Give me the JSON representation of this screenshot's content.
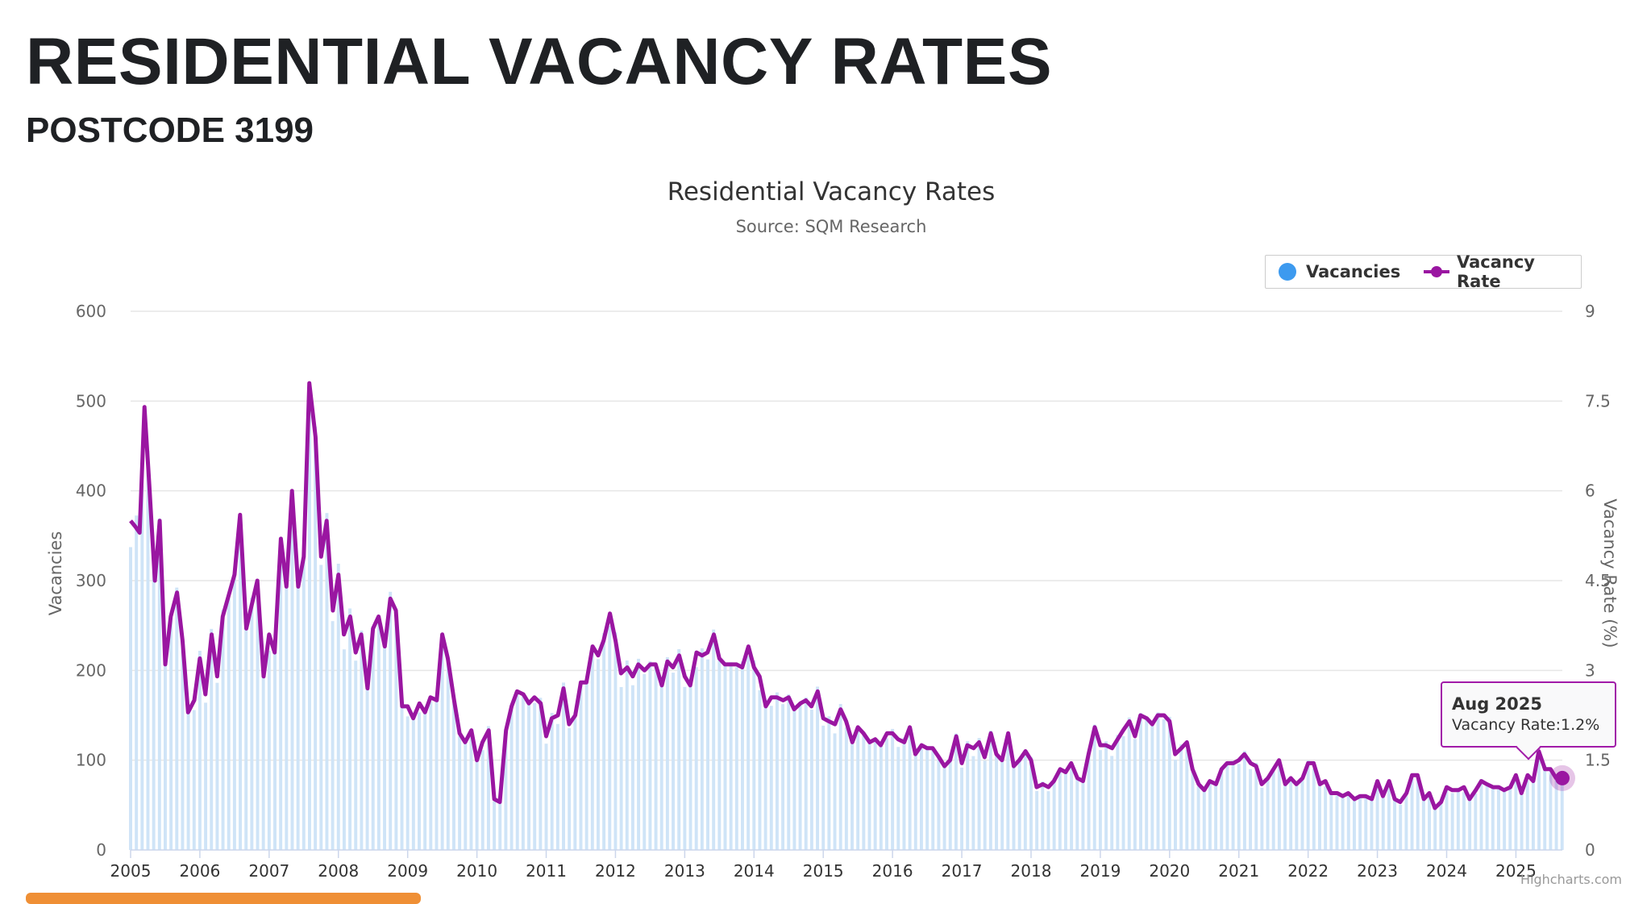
{
  "page": {
    "title": "RESIDENTIAL VACANCY RATES",
    "subtitle": "POSTCODE 3199"
  },
  "credits": "Highcharts.com",
  "tooltip": {
    "date": "Aug 2025",
    "label": "Vacancy Rate:",
    "value": "1.2%"
  },
  "colors": {
    "vacancies": "#3d9aef",
    "vacancies_bar": "#cfe4f7",
    "vacancy_rate": "#9a16a1",
    "grid": "#e6e6e6",
    "text": "#333333",
    "axis_text": "#666666",
    "accent_bar": "#ef8f35"
  },
  "chart_data": {
    "type": "bar+line",
    "title": "Residential Vacancy Rates",
    "subtitle": "Source: SQM Research",
    "xlabel": "",
    "ylabel": "Vacancies",
    "ylabel_right": "Vacancy Rate (%)",
    "xlim": [
      2005,
      2025.67
    ],
    "ylim": [
      0,
      600
    ],
    "ylim_right": [
      0,
      9
    ],
    "x_ticks": [
      "2005",
      "2006",
      "2007",
      "2008",
      "2009",
      "2010",
      "2011",
      "2012",
      "2013",
      "2014",
      "2015",
      "2016",
      "2017",
      "2018",
      "2019",
      "2020",
      "2021",
      "2022",
      "2023",
      "2024",
      "2025"
    ],
    "y_ticks": [
      "0",
      "100",
      "200",
      "300",
      "400",
      "500",
      "600"
    ],
    "y_ticks_right": [
      "0",
      "1.5",
      "3",
      "4.5",
      "6",
      "7.5",
      "9"
    ],
    "legend": [
      "Vacancies",
      "Vacancy Rate"
    ],
    "legend_position": "top-right",
    "vacancy_rate_keypoints": [
      [
        2005.0,
        5.5
      ],
      [
        2005.07,
        5.4
      ],
      [
        2005.13,
        5.3
      ],
      [
        2005.2,
        7.4
      ],
      [
        2005.27,
        6.1
      ],
      [
        2005.35,
        4.5
      ],
      [
        2005.42,
        5.5
      ],
      [
        2005.5,
        3.1
      ],
      [
        2005.58,
        3.9
      ],
      [
        2005.67,
        4.3
      ],
      [
        2005.75,
        3.5
      ],
      [
        2005.83,
        2.3
      ],
      [
        2005.92,
        2.5
      ],
      [
        2006.0,
        3.2
      ],
      [
        2006.08,
        2.6
      ],
      [
        2006.17,
        3.6
      ],
      [
        2006.25,
        2.9
      ],
      [
        2006.33,
        3.9
      ],
      [
        2006.5,
        4.6
      ],
      [
        2006.58,
        5.6
      ],
      [
        2006.67,
        3.7
      ],
      [
        2006.83,
        4.5
      ],
      [
        2006.92,
        2.9
      ],
      [
        2007.0,
        3.6
      ],
      [
        2007.08,
        3.3
      ],
      [
        2007.17,
        5.2
      ],
      [
        2007.25,
        4.4
      ],
      [
        2007.33,
        6.0
      ],
      [
        2007.42,
        4.4
      ],
      [
        2007.5,
        4.9
      ],
      [
        2007.58,
        7.8
      ],
      [
        2007.67,
        6.9
      ],
      [
        2007.75,
        4.9
      ],
      [
        2007.83,
        5.5
      ],
      [
        2007.92,
        4.0
      ],
      [
        2008.0,
        4.6
      ],
      [
        2008.08,
        3.6
      ],
      [
        2008.17,
        3.9
      ],
      [
        2008.25,
        3.3
      ],
      [
        2008.33,
        3.6
      ],
      [
        2008.42,
        2.7
      ],
      [
        2008.5,
        3.7
      ],
      [
        2008.58,
        3.9
      ],
      [
        2008.67,
        3.4
      ],
      [
        2008.75,
        4.2
      ],
      [
        2008.83,
        4.0
      ],
      [
        2008.92,
        2.4
      ],
      [
        2009.0,
        2.4
      ],
      [
        2009.08,
        2.2
      ],
      [
        2009.17,
        2.45
      ],
      [
        2009.25,
        2.3
      ],
      [
        2009.33,
        2.55
      ],
      [
        2009.42,
        2.5
      ],
      [
        2009.5,
        3.6
      ],
      [
        2009.58,
        3.2
      ],
      [
        2009.67,
        2.5
      ],
      [
        2009.75,
        1.95
      ],
      [
        2009.83,
        1.8
      ],
      [
        2009.92,
        2.0
      ],
      [
        2010.0,
        1.5
      ],
      [
        2010.08,
        1.8
      ],
      [
        2010.17,
        2.0
      ],
      [
        2010.25,
        0.85
      ],
      [
        2010.33,
        0.8
      ],
      [
        2010.42,
        2.0
      ],
      [
        2010.5,
        2.4
      ],
      [
        2010.58,
        2.65
      ],
      [
        2010.67,
        2.6
      ],
      [
        2010.75,
        2.45
      ],
      [
        2010.83,
        2.55
      ],
      [
        2010.92,
        2.45
      ],
      [
        2011.0,
        1.9
      ],
      [
        2011.08,
        2.2
      ],
      [
        2011.17,
        2.25
      ],
      [
        2011.25,
        2.7
      ],
      [
        2011.33,
        2.1
      ],
      [
        2011.42,
        2.25
      ],
      [
        2011.5,
        2.8
      ],
      [
        2011.58,
        2.8
      ],
      [
        2011.67,
        3.4
      ],
      [
        2011.75,
        3.25
      ],
      [
        2011.83,
        3.5
      ],
      [
        2011.92,
        3.95
      ],
      [
        2012.0,
        3.5
      ],
      [
        2012.08,
        2.95
      ],
      [
        2012.17,
        3.05
      ],
      [
        2012.25,
        2.9
      ],
      [
        2012.33,
        3.1
      ],
      [
        2012.42,
        3.0
      ],
      [
        2012.5,
        3.1
      ],
      [
        2012.58,
        3.1
      ],
      [
        2012.67,
        2.75
      ],
      [
        2012.75,
        3.15
      ],
      [
        2012.83,
        3.05
      ],
      [
        2012.92,
        3.25
      ],
      [
        2013.0,
        2.9
      ],
      [
        2013.08,
        2.75
      ],
      [
        2013.17,
        3.3
      ],
      [
        2013.25,
        3.25
      ],
      [
        2013.33,
        3.3
      ],
      [
        2013.42,
        3.6
      ],
      [
        2013.5,
        3.2
      ],
      [
        2013.58,
        3.1
      ],
      [
        2013.67,
        3.1
      ],
      [
        2013.75,
        3.1
      ],
      [
        2013.83,
        3.05
      ],
      [
        2013.92,
        3.4
      ],
      [
        2014.0,
        3.05
      ],
      [
        2014.08,
        2.9
      ],
      [
        2014.17,
        2.4
      ],
      [
        2014.25,
        2.55
      ],
      [
        2014.33,
        2.55
      ],
      [
        2014.42,
        2.5
      ],
      [
        2014.5,
        2.55
      ],
      [
        2014.58,
        2.35
      ],
      [
        2014.67,
        2.45
      ],
      [
        2014.75,
        2.5
      ],
      [
        2014.83,
        2.4
      ],
      [
        2014.92,
        2.65
      ],
      [
        2015.0,
        2.2
      ],
      [
        2015.08,
        2.15
      ],
      [
        2015.17,
        2.1
      ],
      [
        2015.25,
        2.35
      ],
      [
        2015.33,
        2.15
      ],
      [
        2015.42,
        1.8
      ],
      [
        2015.5,
        2.05
      ],
      [
        2015.58,
        1.95
      ],
      [
        2015.67,
        1.8
      ],
      [
        2015.75,
        1.85
      ],
      [
        2015.83,
        1.75
      ],
      [
        2015.92,
        1.95
      ],
      [
        2016.0,
        1.95
      ],
      [
        2016.08,
        1.85
      ],
      [
        2016.17,
        1.8
      ],
      [
        2016.25,
        2.05
      ],
      [
        2016.33,
        1.6
      ],
      [
        2016.42,
        1.75
      ],
      [
        2016.5,
        1.7
      ],
      [
        2016.58,
        1.7
      ],
      [
        2016.67,
        1.55
      ],
      [
        2016.75,
        1.4
      ],
      [
        2016.83,
        1.5
      ],
      [
        2016.92,
        1.9
      ],
      [
        2017.0,
        1.45
      ],
      [
        2017.08,
        1.75
      ],
      [
        2017.17,
        1.7
      ],
      [
        2017.25,
        1.8
      ],
      [
        2017.33,
        1.55
      ],
      [
        2017.42,
        1.95
      ],
      [
        2017.5,
        1.6
      ],
      [
        2017.58,
        1.5
      ],
      [
        2017.67,
        1.95
      ],
      [
        2017.75,
        1.4
      ],
      [
        2017.83,
        1.5
      ],
      [
        2017.92,
        1.65
      ],
      [
        2018.0,
        1.5
      ],
      [
        2018.08,
        1.05
      ],
      [
        2018.17,
        1.1
      ],
      [
        2018.25,
        1.05
      ],
      [
        2018.33,
        1.15
      ],
      [
        2018.42,
        1.35
      ],
      [
        2018.5,
        1.3
      ],
      [
        2018.58,
        1.45
      ],
      [
        2018.67,
        1.2
      ],
      [
        2018.75,
        1.15
      ],
      [
        2018.83,
        1.6
      ],
      [
        2018.92,
        2.05
      ],
      [
        2019.0,
        1.75
      ],
      [
        2019.08,
        1.75
      ],
      [
        2019.17,
        1.7
      ],
      [
        2019.25,
        1.85
      ],
      [
        2019.33,
        2.0
      ],
      [
        2019.42,
        2.15
      ],
      [
        2019.5,
        1.9
      ],
      [
        2019.58,
        2.25
      ],
      [
        2019.67,
        2.2
      ],
      [
        2019.75,
        2.1
      ],
      [
        2019.83,
        2.25
      ],
      [
        2019.92,
        2.25
      ],
      [
        2020.0,
        2.15
      ],
      [
        2020.08,
        1.6
      ],
      [
        2020.17,
        1.7
      ],
      [
        2020.25,
        1.8
      ],
      [
        2020.33,
        1.35
      ],
      [
        2020.42,
        1.1
      ],
      [
        2020.5,
        1.0
      ],
      [
        2020.58,
        1.15
      ],
      [
        2020.67,
        1.1
      ],
      [
        2020.75,
        1.35
      ],
      [
        2020.83,
        1.45
      ],
      [
        2020.92,
        1.45
      ],
      [
        2021.0,
        1.5
      ],
      [
        2021.08,
        1.6
      ],
      [
        2021.17,
        1.45
      ],
      [
        2021.25,
        1.4
      ],
      [
        2021.33,
        1.1
      ],
      [
        2021.42,
        1.2
      ],
      [
        2021.5,
        1.35
      ],
      [
        2021.58,
        1.5
      ],
      [
        2021.67,
        1.1
      ],
      [
        2021.75,
        1.2
      ],
      [
        2021.83,
        1.1
      ],
      [
        2021.92,
        1.2
      ],
      [
        2022.0,
        1.45
      ],
      [
        2022.08,
        1.45
      ],
      [
        2022.17,
        1.1
      ],
      [
        2022.25,
        1.15
      ],
      [
        2022.33,
        0.95
      ],
      [
        2022.42,
        0.95
      ],
      [
        2022.5,
        0.9
      ],
      [
        2022.58,
        0.95
      ],
      [
        2022.67,
        0.85
      ],
      [
        2022.75,
        0.9
      ],
      [
        2022.83,
        0.9
      ],
      [
        2022.92,
        0.85
      ],
      [
        2023.0,
        1.15
      ],
      [
        2023.08,
        0.9
      ],
      [
        2023.17,
        1.15
      ],
      [
        2023.25,
        0.85
      ],
      [
        2023.33,
        0.8
      ],
      [
        2023.42,
        0.95
      ],
      [
        2023.5,
        1.25
      ],
      [
        2023.58,
        1.25
      ],
      [
        2023.67,
        0.85
      ],
      [
        2023.75,
        0.95
      ],
      [
        2023.83,
        0.7
      ],
      [
        2023.92,
        0.8
      ],
      [
        2024.0,
        1.05
      ],
      [
        2024.08,
        1.0
      ],
      [
        2024.17,
        1.0
      ],
      [
        2024.25,
        1.05
      ],
      [
        2024.33,
        0.85
      ],
      [
        2024.42,
        1.0
      ],
      [
        2024.5,
        1.15
      ],
      [
        2024.58,
        1.1
      ],
      [
        2024.67,
        1.05
      ],
      [
        2024.75,
        1.05
      ],
      [
        2024.83,
        1.0
      ],
      [
        2024.92,
        1.05
      ],
      [
        2025.0,
        1.25
      ],
      [
        2025.08,
        0.95
      ],
      [
        2025.17,
        1.25
      ],
      [
        2025.25,
        1.15
      ],
      [
        2025.33,
        1.65
      ],
      [
        2025.42,
        1.35
      ],
      [
        2025.5,
        1.35
      ],
      [
        2025.58,
        1.2
      ],
      [
        2025.67,
        1.2
      ]
    ],
    "vacancies_note": "monthly bars; vacancies = vacancy_rate * 66.7 (shared scale)"
  }
}
